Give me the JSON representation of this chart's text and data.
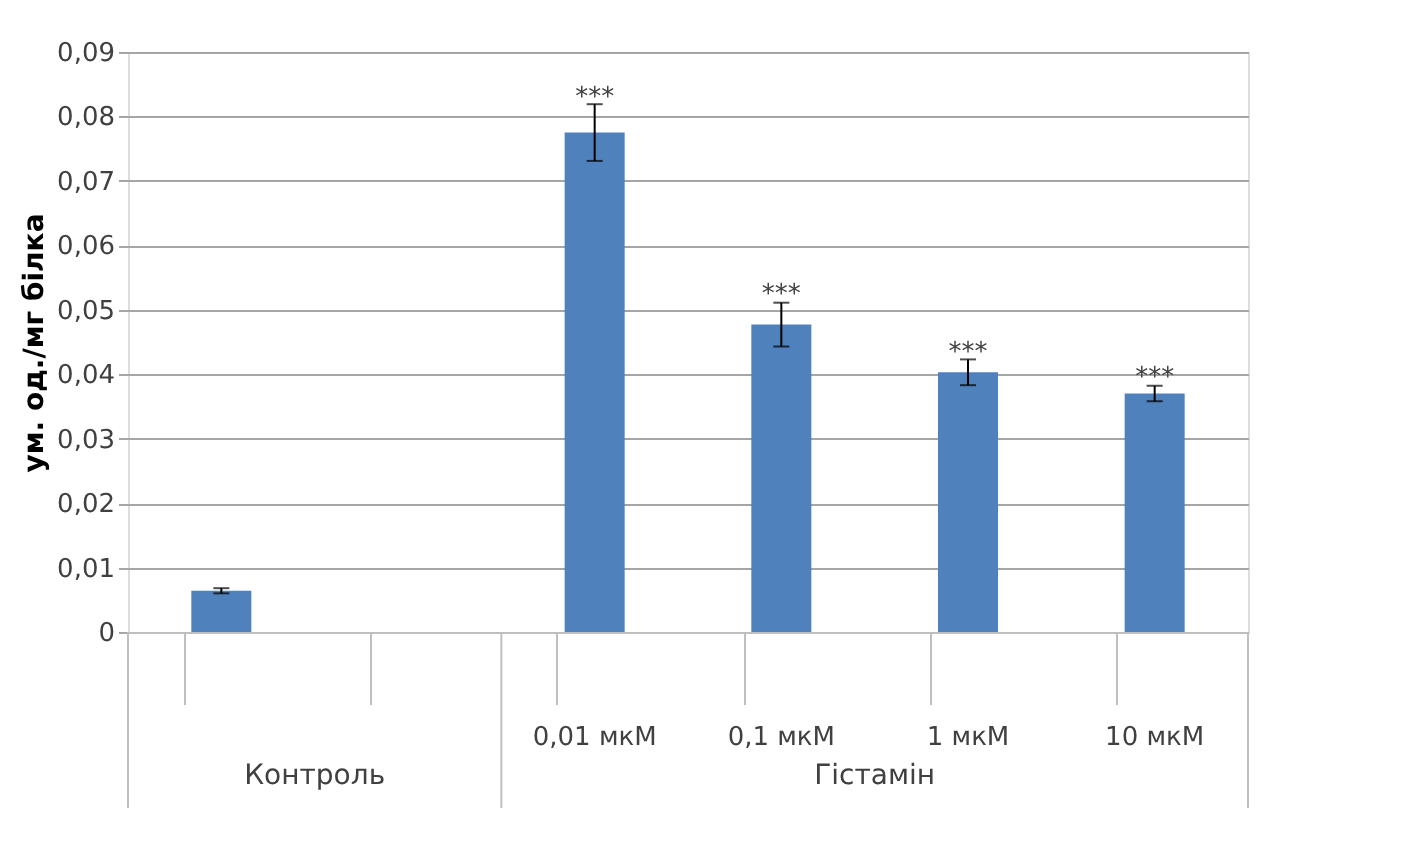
{
  "chart_data": {
    "type": "bar",
    "ylabel": "ум. од./мг білка",
    "categories": [
      null,
      null,
      "0,01 мкМ",
      "0,1 мкМ",
      "1 мкМ",
      "10 мкМ"
    ],
    "values": [
      0.0064,
      null,
      0.0775,
      0.0477,
      0.0403,
      0.037
    ],
    "errors": [
      0.0004,
      null,
      0.0044,
      0.0034,
      0.002,
      0.0012
    ],
    "color": "#4f81bd",
    "ylim": [
      0,
      0.09
    ],
    "yticks": [
      0,
      {
        "value": 0.01,
        "label": "0,01"
      },
      {
        "value": 0.02,
        "label": "0,02"
      },
      {
        "value": 0.03,
        "label": "0,03"
      },
      {
        "value": 0.04,
        "label": "0,04"
      },
      {
        "value": 0.05,
        "label": "0,05"
      },
      {
        "value": 0.06,
        "label": "0,06"
      },
      {
        "value": 0.07,
        "label": "0,07"
      },
      {
        "value": 0.08,
        "label": "0,08"
      },
      {
        "value": 0.09,
        "label": "0,09"
      }
    ],
    "grid": "y",
    "annotations": [
      "Контроль",
      "Гістамін",
      {
        "text": "***",
        "x": "0,01 мкМ",
        "y": 0.083
      },
      {
        "text": "***",
        "x": "0,1 мкМ",
        "y": 0.0525
      },
      {
        "text": "***",
        "x": "1 мкМ",
        "y": 0.0435
      },
      {
        "text": "***",
        "x": "10 мкМ",
        "y": 0.0395
      }
    ]
  }
}
